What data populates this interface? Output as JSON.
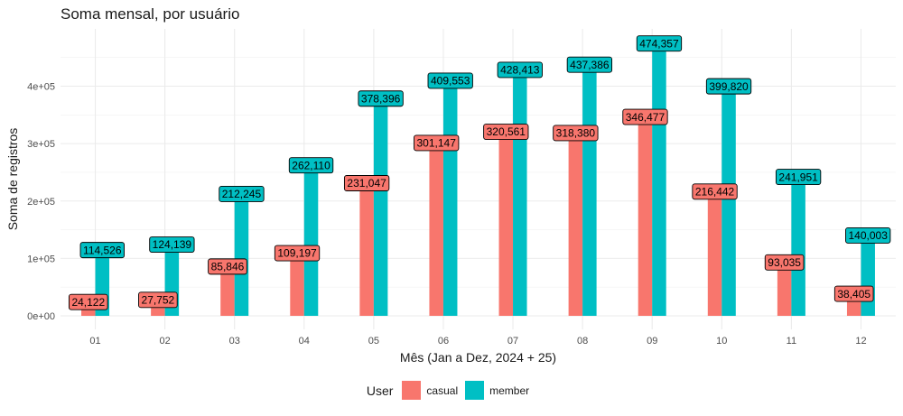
{
  "chart_data": {
    "type": "bar",
    "title": "Soma mensal, por usuário",
    "xlabel": "Mês (Jan a Dez, 2024 + 25)",
    "ylabel": "Soma de registros",
    "categories": [
      "01",
      "02",
      "03",
      "04",
      "05",
      "06",
      "07",
      "08",
      "09",
      "10",
      "11",
      "12"
    ],
    "series": [
      {
        "name": "casual",
        "color": "#F8766D",
        "values": [
          24122,
          27752,
          85846,
          109197,
          231047,
          301147,
          320561,
          318380,
          346477,
          216442,
          93035,
          38405
        ],
        "labels": [
          "24,122",
          "27,752",
          "85,846",
          "109,197",
          "231,047",
          "301,147",
          "320,561",
          "318,380",
          "346,477",
          "216,442",
          "93,035",
          "38,405"
        ]
      },
      {
        "name": "member",
        "color": "#00BFC4",
        "values": [
          114526,
          124139,
          212245,
          262110,
          378396,
          409553,
          428413,
          437386,
          474357,
          399820,
          241951,
          140003
        ],
        "labels": [
          "114,526",
          "124,139",
          "212,245",
          "262,110",
          "378,396",
          "409,553",
          "428,413",
          "437,386",
          "474,357",
          "399,820",
          "241,951",
          "140,003"
        ]
      }
    ],
    "y_ticks": [
      0,
      100000,
      200000,
      300000,
      400000
    ],
    "y_tick_labels": [
      "0e+00",
      "1e+05",
      "2e+05",
      "3e+05",
      "4e+05"
    ],
    "ylim": [
      -20000,
      495000
    ],
    "grid": true,
    "legend_position": "bottom",
    "legend_title": "User"
  }
}
